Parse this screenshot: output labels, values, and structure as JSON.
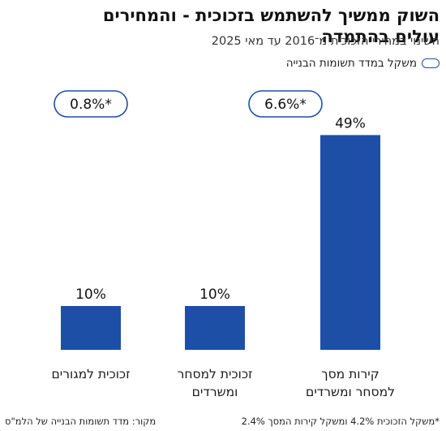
{
  "header": {
    "title_line1": "השוק ממשיך להשתמש בזכוכית - והמחירים",
    "title_line2_bold": "עולים בהתמדה",
    "subtitle": "השינוי במחירי הזכוכית מ־2016 עד מאי 2025"
  },
  "legend": {
    "label": "משקל במדד תשומות הבנייה"
  },
  "footer": {
    "note": "*משקל הזכוכית 4.2% ומשקל קירות המסך 2.4%",
    "source": "מקור: מדד תשומות הבנייה של הלמ\"ס"
  },
  "colors": {
    "bar": "#1e4fa6",
    "pill_border": "#1e4fa6"
  },
  "chart_data": {
    "type": "bar",
    "categories": [
      "קירות מסך למסחר ומשרדים",
      "זכוכית למסחר ומשרדים",
      "זכוכית למגורים"
    ],
    "category_lines": [
      [
        "קירות מסך",
        "למסחר ומשרדים"
      ],
      [
        "זכוכית למסחר",
        "ומשרדים"
      ],
      [
        "זכוכית למגורים"
      ]
    ],
    "values": [
      49,
      10,
      10
    ],
    "value_labels": [
      "49%",
      "10%",
      "10%"
    ],
    "unit": "%",
    "ylim": [
      0,
      50
    ],
    "grid": false,
    "weight_pills": [
      {
        "text": "6.6%*",
        "categories": [
          0,
          1
        ]
      },
      {
        "text": "0.8%*",
        "categories": [
          2
        ]
      }
    ]
  }
}
